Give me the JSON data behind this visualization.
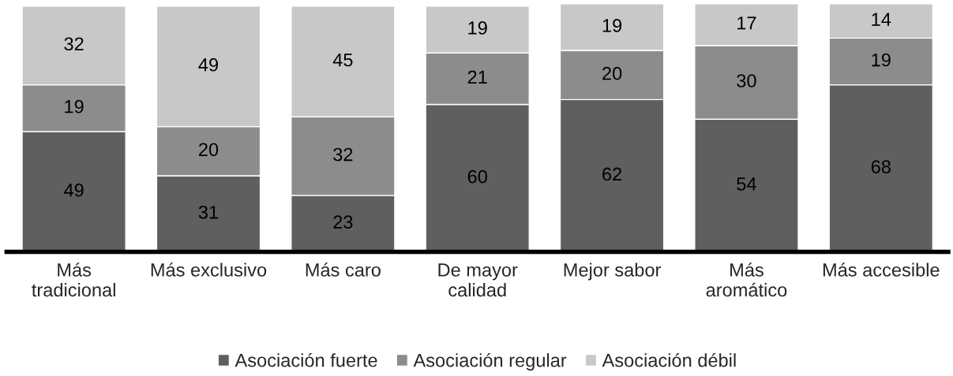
{
  "chart_data": {
    "type": "bar",
    "stacked": true,
    "data_labels": true,
    "grid": false,
    "legend": "bottom",
    "categories": [
      "Más\ntradicional",
      "Más exclusivo",
      "Más caro",
      "De mayor\ncalidad",
      "Mejor sabor",
      "Más\naromático",
      "Más accesible"
    ],
    "series": [
      {
        "name": "Asociación fuerte",
        "color": "#5f5f5f",
        "values": [
          49,
          31,
          23,
          60,
          62,
          54,
          68
        ]
      },
      {
        "name": "Asociación regular",
        "color": "#8c8c8c",
        "values": [
          19,
          20,
          32,
          21,
          20,
          30,
          19
        ]
      },
      {
        "name": "Asociación débil",
        "color": "#c8c8c8",
        "values": [
          32,
          49,
          45,
          19,
          19,
          17,
          14
        ]
      }
    ]
  }
}
